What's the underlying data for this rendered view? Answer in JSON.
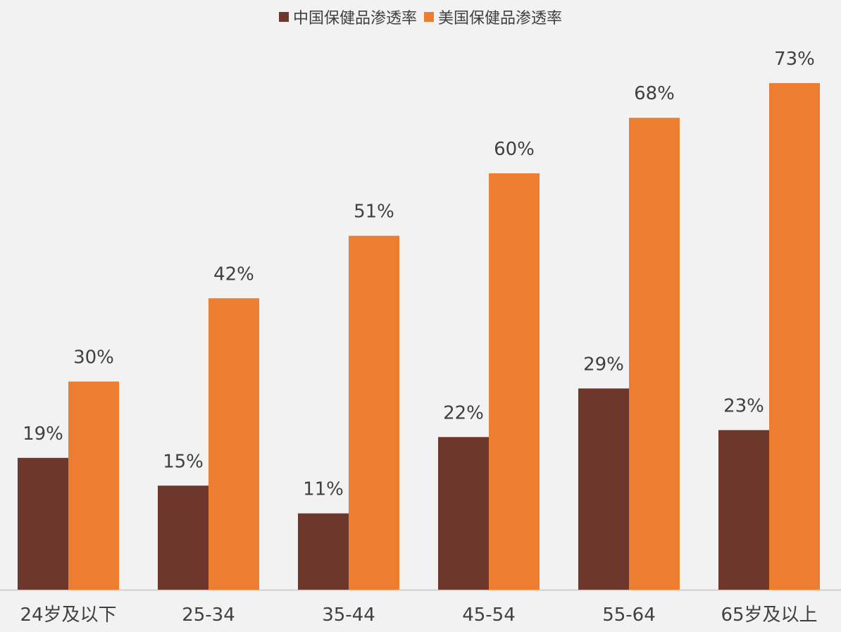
{
  "chart_data": {
    "type": "bar",
    "categories": [
      "24岁及以下",
      "25-34",
      "35-44",
      "45-54",
      "55-64",
      "65岁及以上"
    ],
    "series": [
      {
        "name": "中国保健品渗透率",
        "values": [
          19,
          15,
          11,
          22,
          29,
          23
        ],
        "labels": [
          "19%",
          "15%",
          "11%",
          "22%",
          "29%",
          "23%"
        ],
        "color": "#6e372b"
      },
      {
        "name": "美国保健品渗透率",
        "values": [
          30,
          42,
          51,
          60,
          68,
          73
        ],
        "labels": [
          "30%",
          "42%",
          "51%",
          "60%",
          "68%",
          "73%"
        ],
        "color": "#ed7d31"
      }
    ],
    "ylim": [
      0,
      80
    ],
    "grid": false,
    "legend_position": "top-center"
  }
}
